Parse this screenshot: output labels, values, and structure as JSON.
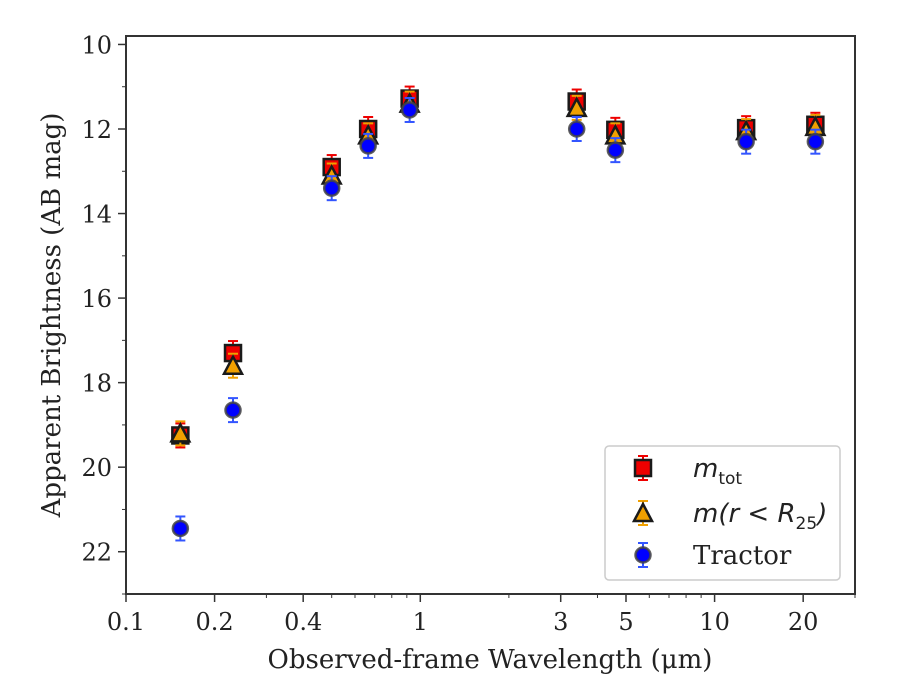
{
  "chart_data": {
    "type": "scatter",
    "title": "",
    "xlabel": "Observed-frame Wavelength (μm)",
    "ylabel": "Apparent Brightness (AB mag)",
    "xscale": "log",
    "xlim": [
      0.1,
      30
    ],
    "ylim": [
      23,
      9.8
    ],
    "y_inverted": true,
    "grid": false,
    "legend_position": "lower-right",
    "xticks": [
      {
        "value": 0.1,
        "label": "0.1"
      },
      {
        "value": 0.2,
        "label": "0.2"
      },
      {
        "value": 0.4,
        "label": "0.4"
      },
      {
        "value": 1,
        "label": "1"
      },
      {
        "value": 3,
        "label": "3"
      },
      {
        "value": 5,
        "label": "5"
      },
      {
        "value": 10,
        "label": "10"
      },
      {
        "value": 20,
        "label": "20"
      }
    ],
    "yticks": [
      {
        "value": 10,
        "label": "10"
      },
      {
        "value": 12,
        "label": "12"
      },
      {
        "value": 14,
        "label": "14"
      },
      {
        "value": 16,
        "label": "16"
      },
      {
        "value": 18,
        "label": "18"
      },
      {
        "value": 20,
        "label": "20"
      },
      {
        "value": 22,
        "label": "22"
      }
    ],
    "series": [
      {
        "name": "m_tot",
        "legend_main": "m",
        "legend_sub": "tot",
        "marker": "square",
        "color": "#ee0000",
        "errcolor": "#ee0000",
        "x": [
          0.153,
          0.231,
          0.5,
          0.665,
          0.92,
          3.4,
          4.6,
          12.8,
          22.0
        ],
        "y": [
          19.25,
          17.3,
          12.9,
          12.0,
          11.28,
          11.35,
          12.02,
          11.98,
          11.9
        ]
      },
      {
        "name": "m(r < R_25)",
        "legend_main": "m(r < R",
        "legend_sub": "25",
        "legend_end": ")",
        "marker": "triangle",
        "color": "#f0a000",
        "errcolor": "#f0a000",
        "x": [
          0.153,
          0.231,
          0.5,
          0.665,
          0.92,
          3.4,
          4.6,
          12.8,
          22.0
        ],
        "y": [
          19.2,
          17.6,
          13.1,
          12.15,
          11.4,
          11.5,
          12.15,
          12.05,
          11.95
        ]
      },
      {
        "name": "Tractor",
        "legend_main": "Tractor",
        "marker": "circle",
        "color": "#0000ff",
        "errcolor": "#3355ff",
        "x": [
          0.153,
          0.231,
          0.5,
          0.665,
          0.92,
          3.4,
          4.6,
          12.8,
          22.0
        ],
        "y": [
          21.45,
          18.65,
          13.4,
          12.4,
          11.55,
          12.0,
          12.5,
          12.3,
          12.3
        ]
      }
    ]
  }
}
